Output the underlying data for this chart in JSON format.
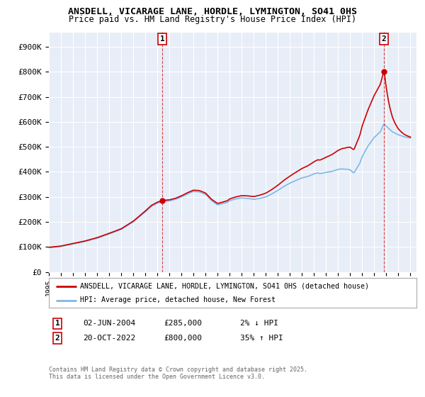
{
  "title": "ANSDELL, VICARAGE LANE, HORDLE, LYMINGTON, SO41 0HS",
  "subtitle": "Price paid vs. HM Land Registry's House Price Index (HPI)",
  "ytick_labels": [
    "£0",
    "£100K",
    "£200K",
    "£300K",
    "£400K",
    "£500K",
    "£600K",
    "£700K",
    "£800K",
    "£900K"
  ],
  "yticks": [
    0,
    100000,
    200000,
    300000,
    400000,
    500000,
    600000,
    700000,
    800000,
    900000
  ],
  "ylim": [
    0,
    960000
  ],
  "sale1_date": "02-JUN-2004",
  "sale1_price": 285000,
  "sale1_x": 2004.42,
  "sale1_label": "1",
  "sale1_hpi_pct": "2% ↓ HPI",
  "sale2_date": "20-OCT-2022",
  "sale2_price": 800000,
  "sale2_x": 2022.8,
  "sale2_label": "2",
  "sale2_hpi_pct": "35% ↑ HPI",
  "legend_label1": "ANSDELL, VICARAGE LANE, HORDLE, LYMINGTON, SO41 0HS (detached house)",
  "legend_label2": "HPI: Average price, detached house, New Forest",
  "footer1": "Contains HM Land Registry data © Crown copyright and database right 2025.",
  "footer2": "This data is licensed under the Open Government Licence v3.0.",
  "hpi_color": "#7EB8E8",
  "price_color": "#CC0000",
  "bg_color": "#FFFFFF",
  "plot_bg_color": "#E8EEF8",
  "grid_color": "#FFFFFF",
  "xmin": 1995,
  "xmax": 2025.5
}
